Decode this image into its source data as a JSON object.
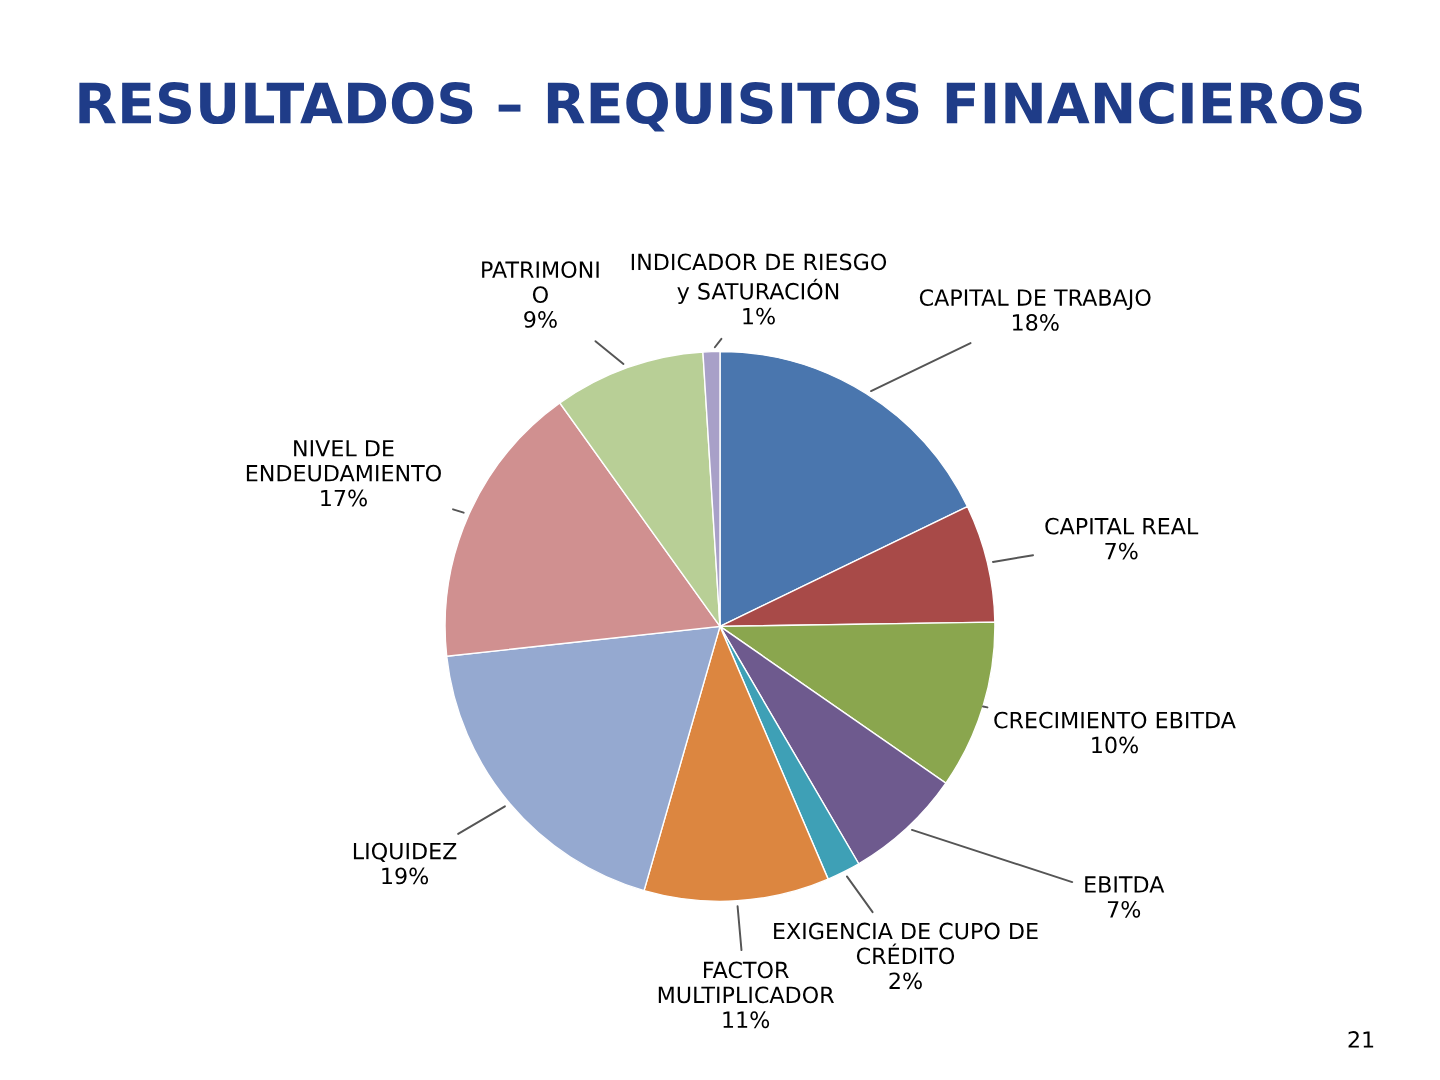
{
  "chart_data": {
    "type": "pie",
    "title": "RESULTADOS – REQUISITOS FINANCIEROS",
    "categories": [
      "CAPITAL DE TRABAJO",
      "CAPITAL REAL",
      "CRECIMIENTO EBITDA",
      "EBITDA",
      "EXIGENCIA DE CUPO DE\nCRÉDITO",
      "FACTOR\nMULTIPLICADOR",
      "LIQUIDEZ",
      "NIVEL DE\nENDEUDAMIENTO",
      "PATRIMONI\nO",
      "INDICADOR DE RIESGO\ny SATURACIÓN"
    ],
    "values": [
      18,
      7,
      10,
      7,
      2,
      11,
      19,
      17,
      9,
      1
    ],
    "value_labels": [
      "18%",
      "7%",
      "10%",
      "7%",
      "2%",
      "11%",
      "19%",
      "17%",
      "9%",
      "1%"
    ],
    "colors": [
      "#4a76ae",
      "#a84a48",
      "#8aa64e",
      "#6e5a8e",
      "#3ea0b6",
      "#dc8640",
      "#95a9d0",
      "#d09090",
      "#b8cf96",
      "#a8a0c8"
    ],
    "annotations": [
      "21"
    ]
  }
}
